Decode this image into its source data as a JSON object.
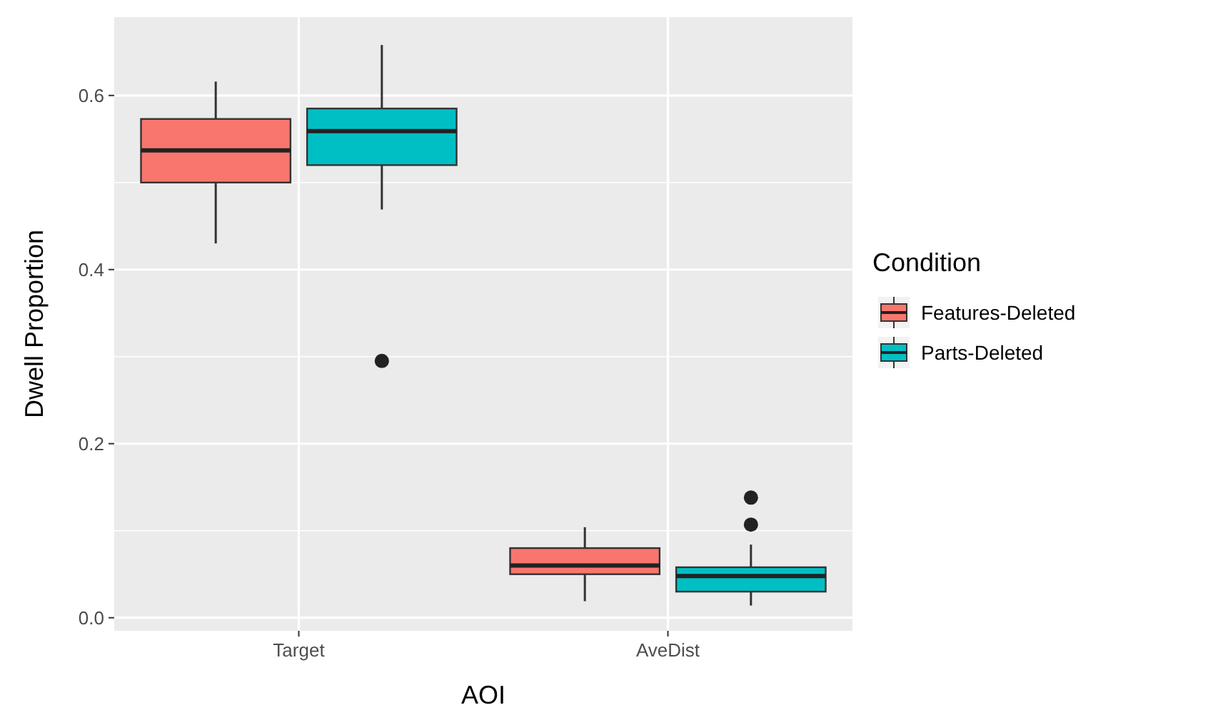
{
  "chart_data": {
    "type": "box",
    "xlabel": "AOI",
    "ylabel": "Dwell Proportion",
    "legend_title": "Condition",
    "legend": "right",
    "grid": true,
    "categories": [
      "Target",
      "AveDist"
    ],
    "ylim": [
      -0.015,
      0.69
    ],
    "yticks": [
      {
        "value": 0,
        "label": "0.0"
      },
      {
        "value": 0.1,
        "label": null
      },
      0.2,
      {
        "value": 0.3,
        "label": null
      },
      0.4,
      {
        "value": 0.5,
        "label": null
      },
      0.6
    ],
    "series": [
      {
        "name": "Features-Deleted",
        "color": "#f8766d",
        "boxes": [
          {
            "low": 0.43,
            "q1": 0.5,
            "median": 0.537,
            "q3": 0.573,
            "high": 0.616
          },
          {
            "low": 0.019,
            "q1": 0.05,
            "median": 0.06,
            "q3": 0.08,
            "high": 0.104
          }
        ]
      },
      {
        "name": "Parts-Deleted",
        "color": "#00bfc4",
        "boxes": [
          {
            "low": 0.469,
            "q1": 0.52,
            "median": 0.559,
            "q3": 0.585,
            "high": 0.658,
            "outliers": [
              0.295
            ]
          },
          {
            "low": 0.014,
            "q1": 0.03,
            "median": 0.048,
            "q3": 0.058,
            "high": 0.084,
            "outliers": [
              0.107,
              0.138
            ]
          }
        ]
      }
    ]
  }
}
